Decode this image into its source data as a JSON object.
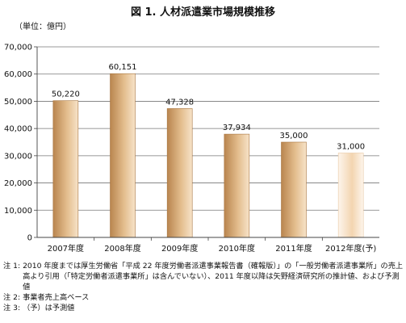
{
  "title": "図 1. 人材派遣業市場規模推移",
  "unit_label": "（単位：億円）",
  "chart_data": {
    "type": "bar",
    "categories": [
      "2007年度",
      "2008年度",
      "2009年度",
      "2010年度",
      "2011年度",
      "2012年度(予)"
    ],
    "values": [
      50220,
      60151,
      47328,
      37934,
      35000,
      31000
    ],
    "data_labels": [
      "50,220",
      "60,151",
      "47,328",
      "37,934",
      "35,000",
      "31,000"
    ],
    "forecast_index": 5,
    "ylim": [
      0,
      70000
    ],
    "yticks": [
      0,
      10000,
      20000,
      30000,
      40000,
      50000,
      60000,
      70000
    ],
    "ytick_labels": [
      "0",
      "10,000",
      "20,000",
      "30,000",
      "40,000",
      "50,000",
      "60,000",
      "70,000"
    ],
    "grid": true,
    "colors": {
      "bar_dark": "#b9854f",
      "bar_mid": "#e3bd8d",
      "bar_light": "#f7e3c9",
      "forecast_light": "#fdf5ec",
      "forecast_mid": "#f3d5b0"
    }
  },
  "notes": [
    {
      "label": "注 1:",
      "text": "2010 年度までは厚生労働省「平成 22 年度労働者派遣事業報告書（確報版）」の「一般労働者派遣事業所」の売上高より引用（「特定労働者派遣事業所」は含んでいない）、2011 年度以降は矢野経済研究所の推計値、および予測値"
    },
    {
      "label": "注 2:",
      "text": "事業者売上高ベース"
    },
    {
      "label": "注 3:",
      "text": "（予）は予測値"
    }
  ]
}
